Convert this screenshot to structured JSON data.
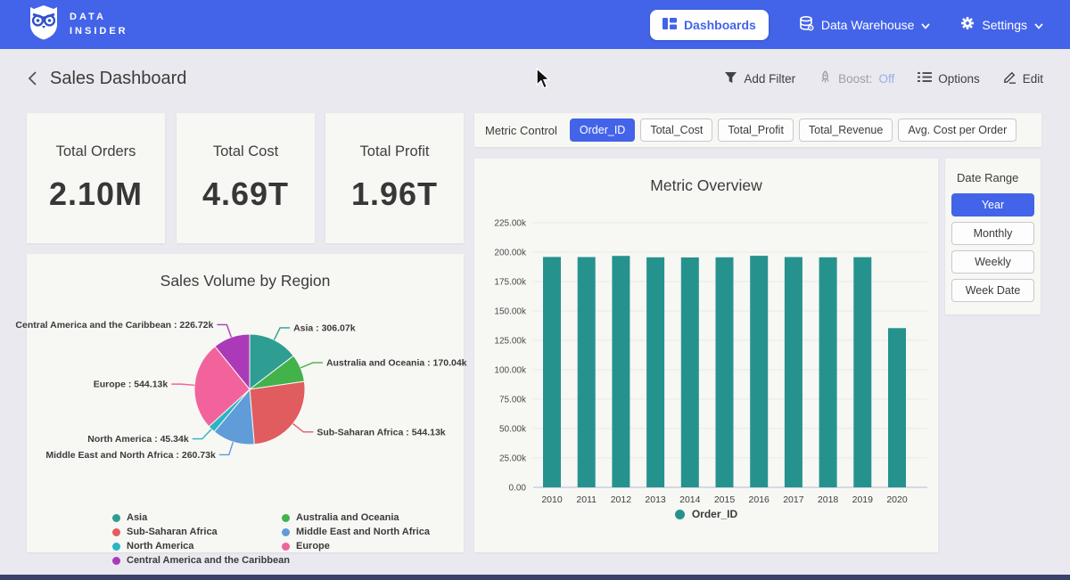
{
  "colors": {
    "accent": "#4364e8",
    "page_background": "#e9e9ef",
    "card_background": "#f7f7f4",
    "bar_teal": "#26928e",
    "bottom_strip": "#39426a"
  },
  "topnav": {
    "brand_line1": "DATA",
    "brand_line2": "INSIDER",
    "items": [
      {
        "label": "Dashboards",
        "active": true
      },
      {
        "label": "Data Warehouse",
        "active": false
      },
      {
        "label": "Settings",
        "active": false
      }
    ]
  },
  "header": {
    "title": "Sales Dashboard",
    "actions": {
      "add_filter": "Add Filter",
      "boost_label": "Boost:",
      "boost_value": "Off",
      "options": "Options",
      "edit": "Edit"
    }
  },
  "kpis": [
    {
      "label": "Total Orders",
      "value": "2.10M"
    },
    {
      "label": "Total Cost",
      "value": "4.69T"
    },
    {
      "label": "Total Profit",
      "value": "1.96T"
    }
  ],
  "metric_control": {
    "label": "Metric Control",
    "options": [
      "Order_ID",
      "Total_Cost",
      "Total_Profit",
      "Total_Revenue",
      "Avg. Cost per Order"
    ],
    "selected": "Order_ID"
  },
  "date_range": {
    "label": "Date Range",
    "options": [
      "Year",
      "Monthly",
      "Weekly",
      "Week Date"
    ],
    "selected": "Year"
  },
  "chart_data": [
    {
      "type": "pie",
      "title": "Sales Volume by Region",
      "unit": "k",
      "slices": [
        {
          "name": "Asia",
          "value": 306.07,
          "display": "Asia : 306.07k",
          "color": "#2e9e92"
        },
        {
          "name": "Australia and Oceania",
          "value": 170.04,
          "display": "Australia and Oceania : 170.04k",
          "color": "#42b24a"
        },
        {
          "name": "Sub-Saharan Africa",
          "value": 544.13,
          "display": "Sub-Saharan Africa : 544.13k",
          "color": "#e05c5e"
        },
        {
          "name": "Middle East and North Africa",
          "value": 260.73,
          "display": "Middle East and North Africa : 260.73k",
          "color": "#5f9cd8"
        },
        {
          "name": "North America",
          "value": 45.34,
          "display": "North America : 45.34k",
          "color": "#2ab4c4"
        },
        {
          "name": "Europe",
          "value": 544.13,
          "display": "Europe : 544.13k",
          "color": "#f2639c"
        },
        {
          "name": "Central America and the Caribbean",
          "value": 226.72,
          "display": "Central America and the Caribbean : 226.72k",
          "color": "#ab3ab8"
        }
      ],
      "legend_columns": [
        [
          "Asia",
          "Sub-Saharan Africa",
          "North America",
          "Central America and the Caribbean"
        ],
        [
          "Australia and Oceania",
          "Middle East and North Africa",
          "Europe"
        ]
      ],
      "legend_position": "bottom"
    },
    {
      "type": "bar",
      "title": "Metric Overview",
      "categories": [
        "2010",
        "2011",
        "2012",
        "2013",
        "2014",
        "2015",
        "2016",
        "2017",
        "2018",
        "2019",
        "2020"
      ],
      "series": [
        {
          "name": "Order_ID",
          "color": "#26928e",
          "values": [
            195.9,
            195.8,
            196.8,
            195.6,
            195.5,
            195.6,
            196.9,
            195.8,
            195.6,
            195.7,
            135.4
          ]
        }
      ],
      "value_unit": "k",
      "y_ticks": [
        "225.00k",
        "200.00k",
        "175.00k",
        "150.00k",
        "125.00k",
        "100.00k",
        "75.00k",
        "50.00k",
        "25.00k",
        "0.00"
      ],
      "y_tick_values": [
        225,
        200,
        175,
        150,
        125,
        100,
        75,
        50,
        25,
        0
      ],
      "ylim": [
        0,
        225
      ],
      "grid": true,
      "legend_position": "bottom"
    }
  ]
}
